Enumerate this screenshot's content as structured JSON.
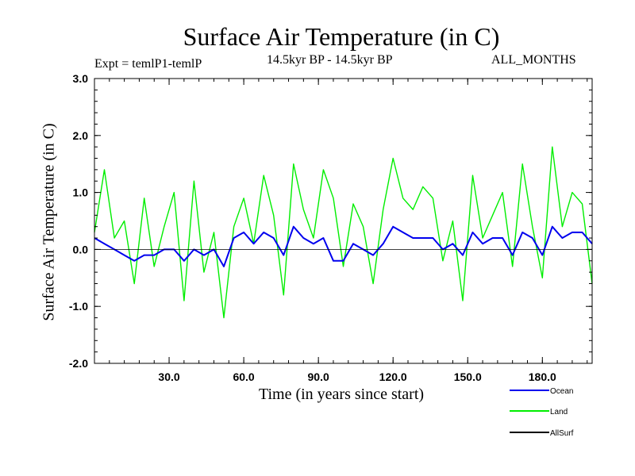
{
  "chart_data": {
    "type": "line",
    "title": "Surface Air Temperature (in C)",
    "experiment": "Expt = temlP1-temlP",
    "period": "14.5kyr BP - 14.5kyr BP",
    "months": "ALL_MONTHS",
    "xlabel": "Time (in years since start)",
    "ylabel": "Surface Air Temperature (in C)",
    "xlim": [
      0,
      200
    ],
    "ylim": [
      -2.0,
      3.0
    ],
    "xticks": [
      30,
      60,
      90,
      120,
      150,
      180
    ],
    "xtick_labels": [
      "30.0",
      "60.0",
      "90.0",
      "120.0",
      "150.0",
      "180.0"
    ],
    "yticks": [
      -2.0,
      -1.0,
      0.0,
      1.0,
      2.0,
      3.0
    ],
    "ytick_labels": [
      "-2.0",
      "-1.0",
      "0.0",
      "1.0",
      "2.0",
      "3.0"
    ],
    "series": [
      {
        "name": "Land",
        "color": "#00ee00",
        "x_start": 0,
        "x_step": 4,
        "values": [
          0.3,
          1.4,
          0.2,
          0.5,
          -0.6,
          0.9,
          -0.3,
          0.4,
          1.0,
          -0.9,
          1.2,
          -0.4,
          0.3,
          -1.2,
          0.4,
          0.9,
          0.1,
          1.3,
          0.6,
          -0.8,
          1.5,
          0.7,
          0.2,
          1.4,
          0.9,
          -0.3,
          0.8,
          0.4,
          -0.6,
          0.7,
          1.6,
          0.9,
          0.7,
          1.1,
          0.9,
          -0.2,
          0.5,
          -0.9,
          1.3,
          0.2,
          0.6,
          1.0,
          -0.3,
          1.5,
          0.4,
          -0.5,
          1.8,
          0.4,
          1.0,
          0.8,
          -0.6
        ]
      },
      {
        "name": "Ocean",
        "color": "#0000ee",
        "x_start": 0,
        "x_step": 4,
        "values": [
          0.2,
          0.1,
          0.0,
          -0.1,
          -0.2,
          -0.1,
          -0.1,
          0.0,
          0.0,
          -0.2,
          0.0,
          -0.1,
          0.0,
          -0.3,
          0.2,
          0.3,
          0.1,
          0.3,
          0.2,
          -0.1,
          0.4,
          0.2,
          0.1,
          0.2,
          -0.2,
          -0.2,
          0.1,
          0.0,
          -0.1,
          0.1,
          0.4,
          0.3,
          0.2,
          0.2,
          0.2,
          0.0,
          0.1,
          -0.1,
          0.3,
          0.1,
          0.2,
          0.2,
          -0.1,
          0.3,
          0.2,
          -0.1,
          0.4,
          0.2,
          0.3,
          0.3,
          0.1
        ]
      },
      {
        "name": "AllSurf",
        "color": "#000000",
        "x_start": 0,
        "x_step": 4,
        "values": [
          0.0,
          0.0,
          0.0,
          0.0,
          0.0,
          0.0,
          0.0,
          0.0,
          0.0,
          0.0,
          0.0,
          0.0,
          0.0,
          0.0,
          0.0,
          0.0,
          0.0,
          0.0,
          0.0,
          0.0,
          0.0,
          0.0,
          0.0,
          0.0,
          0.0,
          0.0,
          0.0,
          0.0,
          0.0,
          0.0,
          0.0,
          0.0,
          0.0,
          0.0,
          0.0,
          0.0,
          0.0,
          0.0,
          0.0,
          0.0,
          0.0,
          0.0,
          0.0,
          0.0,
          0.0,
          0.0,
          0.0,
          0.0,
          0.0,
          0.0,
          0.0
        ]
      }
    ],
    "legend": [
      {
        "label": "Ocean",
        "color": "#0000ee"
      },
      {
        "label": "Land",
        "color": "#00ee00"
      },
      {
        "label": "AllSurf",
        "color": "#000000"
      }
    ]
  }
}
